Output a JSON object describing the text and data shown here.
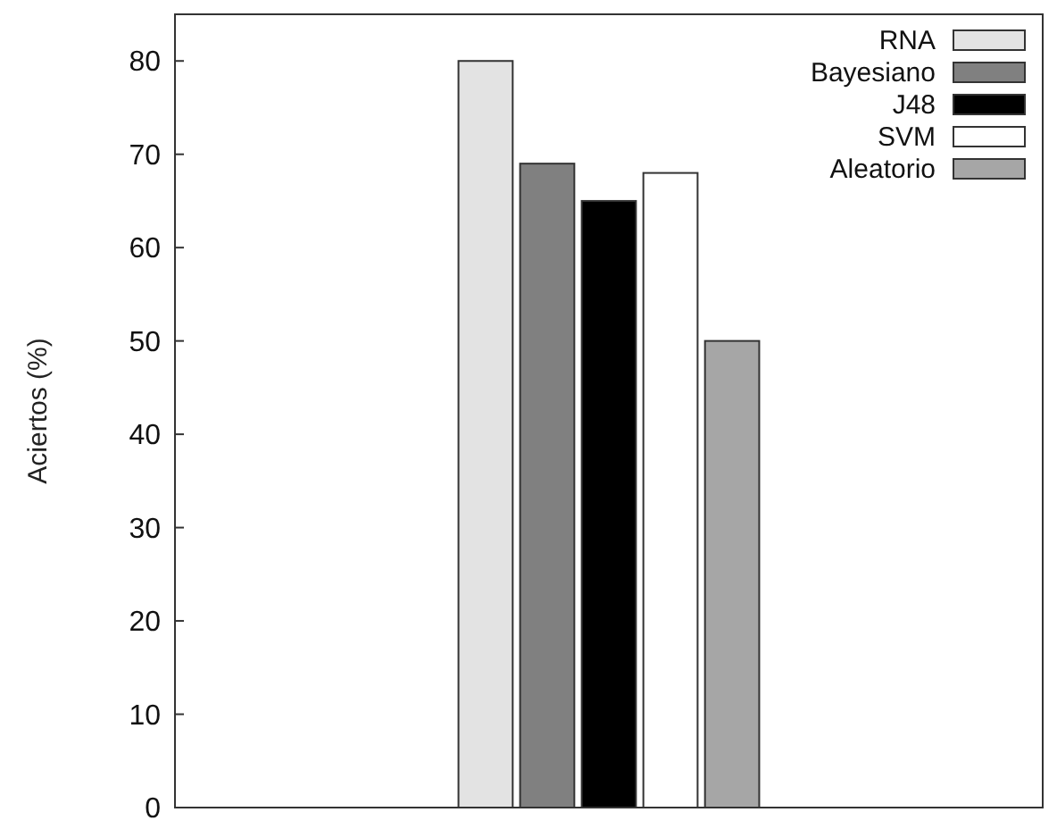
{
  "chart_data": {
    "type": "bar",
    "ylabel": "Aciertos (%)",
    "categories": [
      null
    ],
    "ylim": [
      0,
      85
    ],
    "yticks": [
      0,
      10,
      20,
      30,
      40,
      50,
      60,
      70,
      80
    ],
    "legend": "top right",
    "series": [
      {
        "name": "RNA",
        "color": "#e3e3e3",
        "values": [
          80
        ]
      },
      {
        "name": "Bayesiano",
        "color": "#808080",
        "values": [
          69
        ]
      },
      {
        "name": "J48",
        "color": "#000000",
        "values": [
          65
        ]
      },
      {
        "name": "SVM",
        "color": "#ffffff",
        "values": [
          68
        ]
      },
      {
        "name": "Aleatorio",
        "color": "#a6a6a6",
        "values": [
          50
        ]
      }
    ]
  }
}
